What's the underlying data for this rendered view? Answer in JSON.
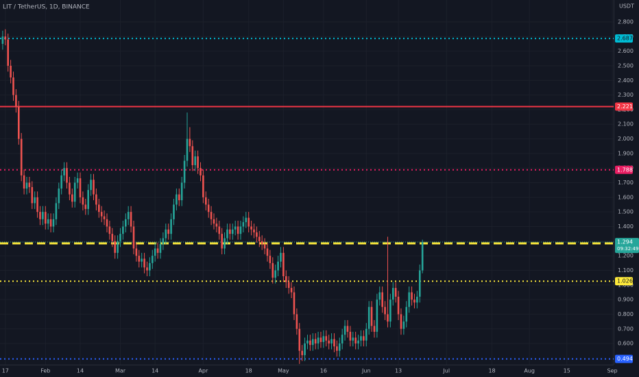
{
  "chart_data": {
    "type": "candlestick",
    "title": "LIT / TetherUS, 1D, BINANCE",
    "currency": "USDT",
    "up_color": "#26a69a",
    "down_color": "#ef5350",
    "grid": true,
    "xlim": [
      -1,
      228.5
    ],
    "ylim": [
      0.455,
      2.95
    ],
    "xticks": [
      {
        "value": 1,
        "label": "17"
      },
      {
        "value": 16,
        "label": "Feb"
      },
      {
        "value": 29,
        "label": "14"
      },
      {
        "value": 44,
        "label": "Mar"
      },
      {
        "value": 57,
        "label": "14"
      },
      {
        "value": 75,
        "label": "Apr"
      },
      {
        "value": 92,
        "label": "18"
      },
      {
        "value": 105,
        "label": "May"
      },
      {
        "value": 120,
        "label": "16"
      },
      {
        "value": 136,
        "label": "Jun"
      },
      {
        "value": 148,
        "label": "13"
      },
      {
        "value": 166,
        "label": "Jul"
      },
      {
        "value": 183,
        "label": "18"
      },
      {
        "value": 197,
        "label": "Aug"
      },
      {
        "value": 211,
        "label": "15"
      },
      {
        "value": 228,
        "label": "Sep"
      }
    ],
    "yticks": [
      {
        "value": 0.6,
        "label": "0.600"
      },
      {
        "value": 0.7,
        "label": "0.700"
      },
      {
        "value": 0.8,
        "label": "0.800"
      },
      {
        "value": 0.9,
        "label": "0.900"
      },
      {
        "value": 1.0,
        "label": "1.000"
      },
      {
        "value": 1.1,
        "label": "1.100"
      },
      {
        "value": 1.2,
        "label": "1.200"
      },
      {
        "value": 1.3,
        "label": "1.300"
      },
      {
        "value": 1.4,
        "label": "1.400"
      },
      {
        "value": 1.5,
        "label": "1.500"
      },
      {
        "value": 1.6,
        "label": "1.600"
      },
      {
        "value": 1.7,
        "label": "1.700"
      },
      {
        "value": 1.8,
        "label": "1.800"
      },
      {
        "value": 1.9,
        "label": "1.900"
      },
      {
        "value": 2.0,
        "label": "2.000"
      },
      {
        "value": 2.1,
        "label": "2.100"
      },
      {
        "value": 2.2,
        "label": "2.200"
      },
      {
        "value": 2.3,
        "label": "2.300"
      },
      {
        "value": 2.4,
        "label": "2.400"
      },
      {
        "value": 2.5,
        "label": "2.500"
      },
      {
        "value": 2.6,
        "label": "2.600"
      },
      {
        "value": 2.7,
        "label": "2.700"
      },
      {
        "value": 2.8,
        "label": "2.800"
      }
    ],
    "levels": [
      {
        "value": 2.687,
        "color": "#00bcd4",
        "style": "dotted"
      },
      {
        "value": 2.221,
        "color": "#f23645",
        "style": "solid"
      },
      {
        "value": 1.788,
        "color": "#e91e63",
        "style": "dotted"
      },
      {
        "value": 1.285,
        "color": "#ffeb3b",
        "style": "dashed"
      },
      {
        "value": 1.026,
        "color": "#ffeb3b",
        "style": "dotted"
      },
      {
        "value": 0.494,
        "color": "#2962ff",
        "style": "dotted"
      }
    ],
    "last": {
      "value": 1.294,
      "countdown": "09:32:49",
      "color": "#26a69a"
    },
    "candles": [
      [
        2.65,
        2.74,
        2.61,
        2.7
      ],
      [
        2.7,
        2.75,
        2.64,
        2.68
      ],
      [
        2.68,
        2.72,
        2.46,
        2.5
      ],
      [
        2.5,
        2.54,
        2.38,
        2.42
      ],
      [
        2.42,
        2.46,
        2.26,
        2.3
      ],
      [
        2.3,
        2.34,
        2.18,
        2.22
      ],
      [
        2.22,
        2.26,
        1.96,
        2.0
      ],
      [
        2.0,
        2.04,
        1.71,
        1.75
      ],
      [
        1.75,
        1.79,
        1.62,
        1.66
      ],
      [
        1.66,
        1.74,
        1.62,
        1.7
      ],
      [
        1.7,
        1.74,
        1.63,
        1.67
      ],
      [
        1.67,
        1.71,
        1.52,
        1.56
      ],
      [
        1.56,
        1.64,
        1.52,
        1.6
      ],
      [
        1.6,
        1.64,
        1.46,
        1.5
      ],
      [
        1.5,
        1.54,
        1.41,
        1.45
      ],
      [
        1.45,
        1.54,
        1.41,
        1.5
      ],
      [
        1.5,
        1.54,
        1.38,
        1.42
      ],
      [
        1.42,
        1.49,
        1.38,
        1.45
      ],
      [
        1.45,
        1.49,
        1.36,
        1.4
      ],
      [
        1.4,
        1.49,
        1.36,
        1.45
      ],
      [
        1.45,
        1.6,
        1.41,
        1.56
      ],
      [
        1.56,
        1.7,
        1.52,
        1.66
      ],
      [
        1.66,
        1.79,
        1.62,
        1.75
      ],
      [
        1.75,
        1.84,
        1.71,
        1.8
      ],
      [
        1.8,
        1.84,
        1.66,
        1.7
      ],
      [
        1.7,
        1.74,
        1.58,
        1.62
      ],
      [
        1.62,
        1.66,
        1.53,
        1.57
      ],
      [
        1.57,
        1.74,
        1.53,
        1.7
      ],
      [
        1.7,
        1.77,
        1.66,
        1.73
      ],
      [
        1.73,
        1.77,
        1.56,
        1.6
      ],
      [
        1.6,
        1.64,
        1.51,
        1.55
      ],
      [
        1.55,
        1.59,
        1.48,
        1.52
      ],
      [
        1.52,
        1.69,
        1.48,
        1.65
      ],
      [
        1.65,
        1.76,
        1.61,
        1.72
      ],
      [
        1.72,
        1.76,
        1.58,
        1.62
      ],
      [
        1.62,
        1.66,
        1.51,
        1.55
      ],
      [
        1.55,
        1.59,
        1.46,
        1.5
      ],
      [
        1.5,
        1.54,
        1.43,
        1.47
      ],
      [
        1.47,
        1.51,
        1.41,
        1.45
      ],
      [
        1.45,
        1.49,
        1.36,
        1.4
      ],
      [
        1.4,
        1.44,
        1.31,
        1.35
      ],
      [
        1.35,
        1.39,
        1.26,
        1.3
      ],
      [
        1.3,
        1.34,
        1.18,
        1.22
      ],
      [
        1.22,
        1.34,
        1.18,
        1.3
      ],
      [
        1.3,
        1.39,
        1.26,
        1.35
      ],
      [
        1.35,
        1.44,
        1.31,
        1.4
      ],
      [
        1.4,
        1.49,
        1.36,
        1.45
      ],
      [
        1.45,
        1.54,
        1.41,
        1.5
      ],
      [
        1.5,
        1.54,
        1.36,
        1.4
      ],
      [
        1.4,
        1.44,
        1.21,
        1.25
      ],
      [
        1.25,
        1.29,
        1.16,
        1.2
      ],
      [
        1.2,
        1.24,
        1.12,
        1.16
      ],
      [
        1.16,
        1.22,
        1.12,
        1.18
      ],
      [
        1.18,
        1.22,
        1.08,
        1.12
      ],
      [
        1.12,
        1.16,
        1.06,
        1.1
      ],
      [
        1.1,
        1.19,
        1.06,
        1.15
      ],
      [
        1.15,
        1.24,
        1.11,
        1.2
      ],
      [
        1.2,
        1.29,
        1.16,
        1.25
      ],
      [
        1.25,
        1.29,
        1.18,
        1.22
      ],
      [
        1.22,
        1.32,
        1.18,
        1.28
      ],
      [
        1.28,
        1.36,
        1.24,
        1.32
      ],
      [
        1.32,
        1.42,
        1.28,
        1.38
      ],
      [
        1.38,
        1.42,
        1.31,
        1.35
      ],
      [
        1.35,
        1.49,
        1.31,
        1.45
      ],
      [
        1.45,
        1.59,
        1.41,
        1.55
      ],
      [
        1.55,
        1.66,
        1.51,
        1.62
      ],
      [
        1.62,
        1.66,
        1.54,
        1.58
      ],
      [
        1.58,
        1.74,
        1.54,
        1.7
      ],
      [
        1.7,
        1.89,
        1.66,
        1.85
      ],
      [
        1.85,
        2.18,
        1.81,
        2.0
      ],
      [
        2.0,
        2.08,
        1.91,
        1.95
      ],
      [
        1.95,
        1.99,
        1.78,
        1.82
      ],
      [
        1.82,
        1.92,
        1.78,
        1.88
      ],
      [
        1.88,
        1.92,
        1.76,
        1.8
      ],
      [
        1.8,
        1.84,
        1.71,
        1.75
      ],
      [
        1.75,
        1.79,
        1.56,
        1.6
      ],
      [
        1.6,
        1.64,
        1.51,
        1.55
      ],
      [
        1.55,
        1.59,
        1.46,
        1.5
      ],
      [
        1.5,
        1.54,
        1.41,
        1.45
      ],
      [
        1.45,
        1.49,
        1.38,
        1.42
      ],
      [
        1.42,
        1.46,
        1.36,
        1.4
      ],
      [
        1.4,
        1.44,
        1.31,
        1.35
      ],
      [
        1.35,
        1.39,
        1.21,
        1.25
      ],
      [
        1.25,
        1.36,
        1.21,
        1.32
      ],
      [
        1.32,
        1.42,
        1.28,
        1.38
      ],
      [
        1.38,
        1.42,
        1.31,
        1.35
      ],
      [
        1.35,
        1.42,
        1.31,
        1.38
      ],
      [
        1.38,
        1.44,
        1.34,
        1.4
      ],
      [
        1.4,
        1.44,
        1.31,
        1.35
      ],
      [
        1.35,
        1.44,
        1.31,
        1.4
      ],
      [
        1.4,
        1.47,
        1.36,
        1.43
      ],
      [
        1.43,
        1.5,
        1.39,
        1.46
      ],
      [
        1.46,
        1.5,
        1.36,
        1.4
      ],
      [
        1.4,
        1.44,
        1.34,
        1.38
      ],
      [
        1.38,
        1.42,
        1.32,
        1.36
      ],
      [
        1.36,
        1.4,
        1.29,
        1.33
      ],
      [
        1.33,
        1.37,
        1.26,
        1.3
      ],
      [
        1.3,
        1.34,
        1.24,
        1.28
      ],
      [
        1.28,
        1.32,
        1.21,
        1.25
      ],
      [
        1.25,
        1.29,
        1.16,
        1.2
      ],
      [
        1.2,
        1.24,
        1.11,
        1.15
      ],
      [
        1.15,
        1.19,
        1.01,
        1.05
      ],
      [
        1.05,
        1.14,
        1.01,
        1.1
      ],
      [
        1.1,
        1.2,
        1.06,
        1.16
      ],
      [
        1.16,
        1.26,
        1.12,
        1.22
      ],
      [
        1.22,
        1.26,
        1.02,
        1.06
      ],
      [
        1.06,
        1.1,
        0.98,
        1.02
      ],
      [
        1.02,
        1.06,
        0.94,
        0.98
      ],
      [
        0.98,
        1.02,
        0.91,
        0.95
      ],
      [
        0.95,
        0.99,
        0.76,
        0.8
      ],
      [
        0.8,
        0.84,
        0.66,
        0.7
      ],
      [
        0.7,
        0.74,
        0.46,
        0.55
      ],
      [
        0.55,
        0.59,
        0.48,
        0.52
      ],
      [
        0.52,
        0.64,
        0.48,
        0.6
      ],
      [
        0.6,
        0.66,
        0.56,
        0.62
      ],
      [
        0.62,
        0.66,
        0.55,
        0.59
      ],
      [
        0.59,
        0.67,
        0.55,
        0.63
      ],
      [
        0.63,
        0.67,
        0.56,
        0.6
      ],
      [
        0.6,
        0.68,
        0.56,
        0.64
      ],
      [
        0.64,
        0.68,
        0.57,
        0.61
      ],
      [
        0.61,
        0.69,
        0.57,
        0.65
      ],
      [
        0.65,
        0.69,
        0.58,
        0.62
      ],
      [
        0.62,
        0.66,
        0.56,
        0.6
      ],
      [
        0.6,
        0.67,
        0.56,
        0.63
      ],
      [
        0.63,
        0.67,
        0.54,
        0.58
      ],
      [
        0.58,
        0.62,
        0.51,
        0.55
      ],
      [
        0.55,
        0.64,
        0.51,
        0.6
      ],
      [
        0.6,
        0.7,
        0.56,
        0.66
      ],
      [
        0.66,
        0.76,
        0.62,
        0.72
      ],
      [
        0.72,
        0.76,
        0.64,
        0.68
      ],
      [
        0.68,
        0.72,
        0.58,
        0.62
      ],
      [
        0.62,
        0.68,
        0.58,
        0.64
      ],
      [
        0.64,
        0.68,
        0.56,
        0.6
      ],
      [
        0.6,
        0.66,
        0.56,
        0.62
      ],
      [
        0.62,
        0.69,
        0.58,
        0.65
      ],
      [
        0.65,
        0.69,
        0.58,
        0.62
      ],
      [
        0.62,
        0.74,
        0.58,
        0.7
      ],
      [
        0.7,
        0.89,
        0.66,
        0.85
      ],
      [
        0.85,
        0.89,
        0.68,
        0.72
      ],
      [
        0.72,
        0.76,
        0.64,
        0.68
      ],
      [
        0.68,
        0.94,
        0.64,
        0.9
      ],
      [
        0.9,
        0.99,
        0.86,
        0.95
      ],
      [
        0.95,
        0.99,
        0.81,
        0.85
      ],
      [
        0.85,
        0.89,
        0.76,
        0.8
      ],
      [
        0.8,
        1.33,
        0.71,
        0.75
      ],
      [
        0.75,
        0.94,
        0.71,
        0.9
      ],
      [
        0.9,
        1.02,
        0.86,
        0.98
      ],
      [
        0.98,
        1.02,
        0.88,
        0.92
      ],
      [
        0.92,
        0.96,
        0.76,
        0.8
      ],
      [
        0.8,
        0.84,
        0.66,
        0.7
      ],
      [
        0.7,
        0.79,
        0.66,
        0.75
      ],
      [
        0.75,
        0.89,
        0.71,
        0.85
      ],
      [
        0.85,
        0.99,
        0.81,
        0.95
      ],
      [
        0.95,
        0.99,
        0.86,
        0.9
      ],
      [
        0.9,
        0.94,
        0.84,
        0.88
      ],
      [
        0.88,
        0.96,
        0.84,
        0.92
      ],
      [
        0.92,
        1.14,
        0.88,
        1.1
      ],
      [
        1.1,
        1.31,
        1.08,
        1.294
      ]
    ]
  }
}
